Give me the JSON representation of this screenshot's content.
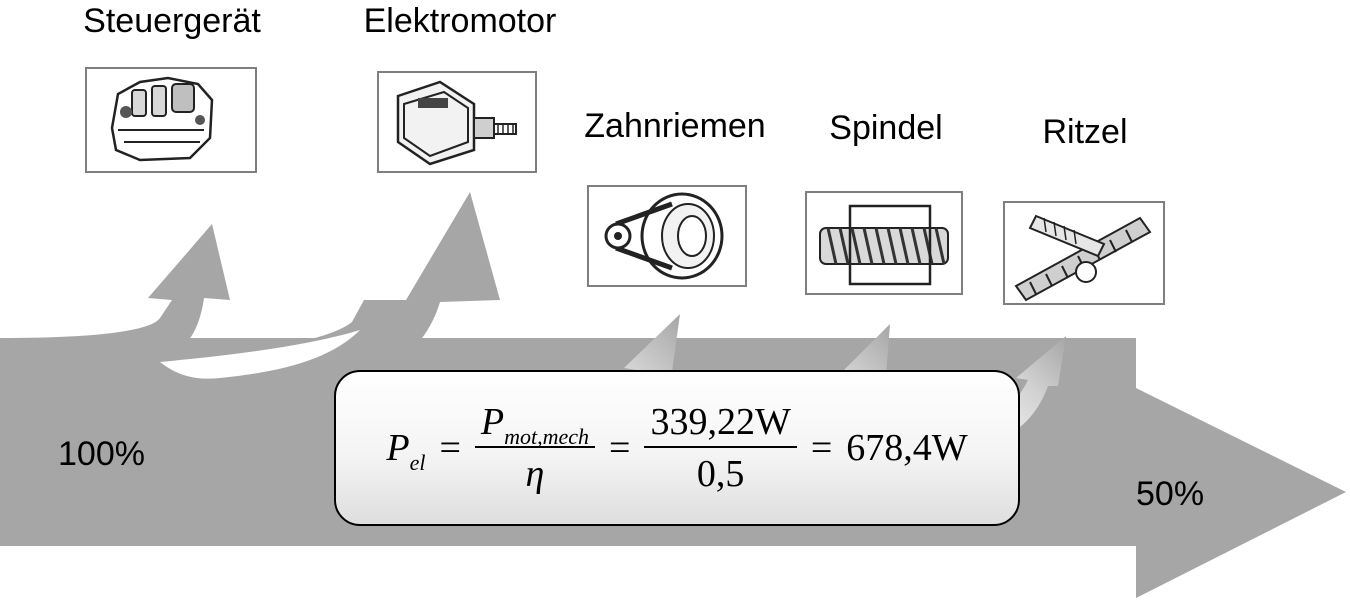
{
  "components": [
    {
      "id": "steuergeraet",
      "label": "Steuergerät"
    },
    {
      "id": "elektromotor",
      "label": "Elektromotor"
    },
    {
      "id": "zahnriemen",
      "label": "Zahnriemen"
    },
    {
      "id": "spindel",
      "label": "Spindel"
    },
    {
      "id": "ritzel",
      "label": "Ritzel"
    }
  ],
  "flow": {
    "input_label": "100%",
    "output_label": "50%",
    "arrow_color": "#a6a6a6",
    "loss_arrow_color": "#a6a6a6"
  },
  "formula": {
    "lhs_symbol": "P",
    "lhs_sub": "el",
    "frac1_num_symbol": "P",
    "frac1_num_sub": "mot,mech",
    "frac1_den": "η",
    "equals": "=",
    "frac2_num": "339,22W",
    "frac2_den": "0,5",
    "result": "678,4W"
  }
}
